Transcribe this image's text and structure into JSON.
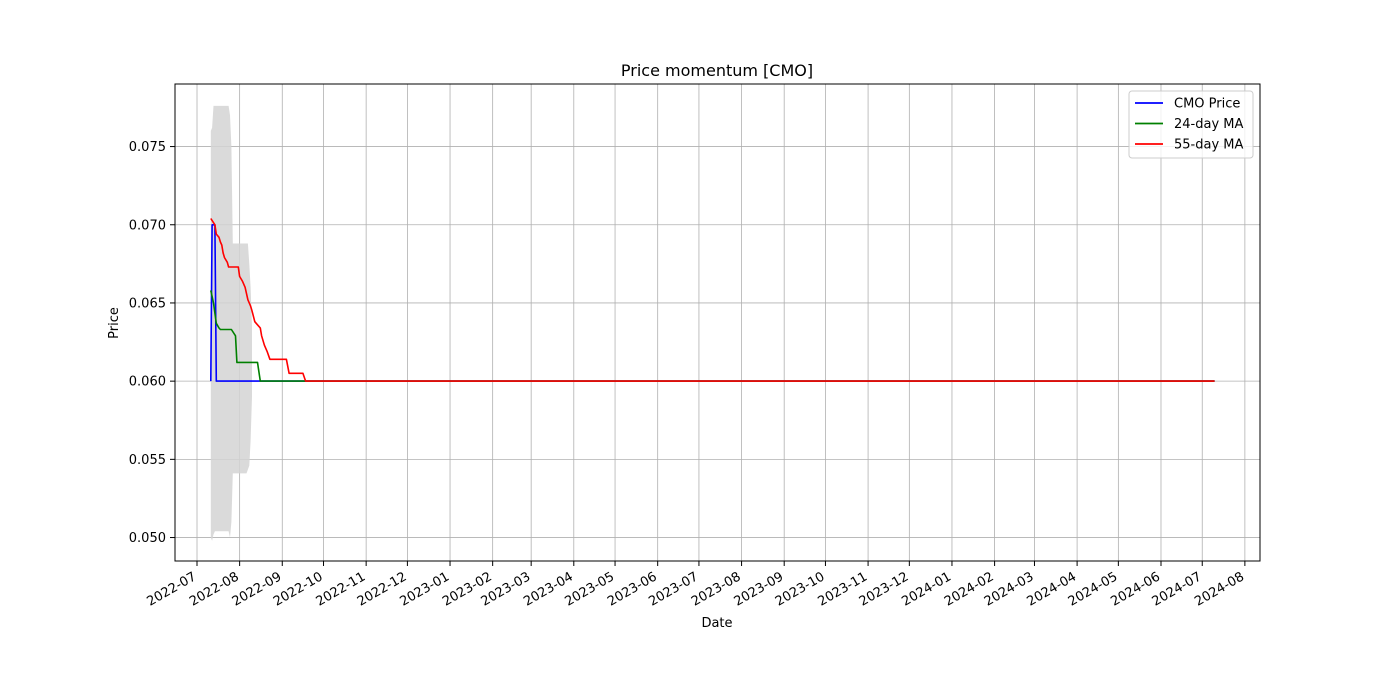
{
  "chart_data": {
    "type": "line",
    "title": "Price momentum [CMO]",
    "xlabel": "Date",
    "ylabel": "Price",
    "xlim": [
      "2022-06-15",
      "2024-08-12"
    ],
    "ylim": [
      0.0485,
      0.079
    ],
    "x_ticks": [
      "2022-07",
      "2022-08",
      "2022-09",
      "2022-10",
      "2022-11",
      "2022-12",
      "2023-01",
      "2023-02",
      "2023-03",
      "2023-04",
      "2023-05",
      "2023-06",
      "2023-07",
      "2023-08",
      "2023-09",
      "2023-10",
      "2023-11",
      "2023-12",
      "2024-01",
      "2024-02",
      "2024-03",
      "2024-04",
      "2024-05",
      "2024-06",
      "2024-07",
      "2024-08"
    ],
    "y_ticks": [
      "0.050",
      "0.055",
      "0.060",
      "0.065",
      "0.070",
      "0.075"
    ],
    "grid": true,
    "legend_position": "top-right",
    "colors": {
      "CMO Price": "#0000ff",
      "24-day MA": "#008000",
      "55-day MA": "#ff0000",
      "band": "#d3d3d3"
    },
    "series": [
      {
        "name": "CMO Price",
        "points": [
          [
            "2022-07-11",
            0.06
          ],
          [
            "2022-07-12",
            0.07
          ],
          [
            "2022-07-14",
            0.07
          ],
          [
            "2022-07-15",
            0.06
          ],
          [
            "2024-07-10",
            0.06
          ]
        ]
      },
      {
        "name": "24-day MA",
        "points": [
          [
            "2022-07-11",
            0.0658
          ],
          [
            "2022-07-13",
            0.065
          ],
          [
            "2022-07-15",
            0.0637
          ],
          [
            "2022-07-17",
            0.0634
          ],
          [
            "2022-07-18",
            0.0633
          ],
          [
            "2022-07-26",
            0.0633
          ],
          [
            "2022-07-29",
            0.0629
          ],
          [
            "2022-07-30",
            0.0612
          ],
          [
            "2022-08-14",
            0.0612
          ],
          [
            "2022-08-16",
            0.06
          ],
          [
            "2022-09-29",
            0.06
          ],
          [
            "2024-07-10",
            0.06
          ]
        ]
      },
      {
        "name": "55-day MA",
        "points": [
          [
            "2022-07-11",
            0.0704
          ],
          [
            "2022-07-14",
            0.07
          ],
          [
            "2022-07-15",
            0.0694
          ],
          [
            "2022-07-17",
            0.0692
          ],
          [
            "2022-07-18",
            0.0689
          ],
          [
            "2022-07-19",
            0.0687
          ],
          [
            "2022-07-20",
            0.0682
          ],
          [
            "2022-07-21",
            0.0679
          ],
          [
            "2022-07-23",
            0.0676
          ],
          [
            "2022-07-24",
            0.0673
          ],
          [
            "2022-07-31",
            0.0673
          ],
          [
            "2022-08-01",
            0.0667
          ],
          [
            "2022-08-03",
            0.0664
          ],
          [
            "2022-08-05",
            0.066
          ],
          [
            "2022-08-07",
            0.0652
          ],
          [
            "2022-08-09",
            0.0648
          ],
          [
            "2022-08-10",
            0.0645
          ],
          [
            "2022-08-12",
            0.0638
          ],
          [
            "2022-08-14",
            0.0636
          ],
          [
            "2022-08-16",
            0.0634
          ],
          [
            "2022-08-17",
            0.0629
          ],
          [
            "2022-08-19",
            0.0623
          ],
          [
            "2022-08-21",
            0.0619
          ],
          [
            "2022-08-23",
            0.0614
          ],
          [
            "2022-09-04",
            0.0614
          ],
          [
            "2022-09-06",
            0.0605
          ],
          [
            "2022-09-16",
            0.0605
          ],
          [
            "2022-09-18",
            0.06
          ],
          [
            "2024-07-10",
            0.06
          ]
        ]
      }
    ],
    "band": {
      "upper": [
        [
          "2022-07-11",
          0.076
        ],
        [
          "2022-07-12",
          0.0762
        ],
        [
          "2022-07-13",
          0.0776
        ],
        [
          "2022-07-24",
          0.0776
        ],
        [
          "2022-07-25",
          0.077
        ],
        [
          "2022-07-26",
          0.075
        ],
        [
          "2022-07-27",
          0.0688
        ],
        [
          "2022-08-07",
          0.0688
        ],
        [
          "2022-08-08",
          0.0675
        ],
        [
          "2022-08-09",
          0.066
        ],
        [
          "2022-08-10",
          0.0635
        ]
      ],
      "lower": [
        [
          "2022-07-11",
          0.05
        ],
        [
          "2022-07-12",
          0.0498
        ],
        [
          "2022-07-13",
          0.0502
        ],
        [
          "2022-07-14",
          0.0504
        ],
        [
          "2022-07-24",
          0.0504
        ],
        [
          "2022-07-25",
          0.05
        ],
        [
          "2022-07-26",
          0.051
        ],
        [
          "2022-07-27",
          0.0541
        ],
        [
          "2022-08-06",
          0.0541
        ],
        [
          "2022-08-08",
          0.0546
        ],
        [
          "2022-08-09",
          0.0562
        ],
        [
          "2022-08-10",
          0.059
        ]
      ]
    }
  }
}
